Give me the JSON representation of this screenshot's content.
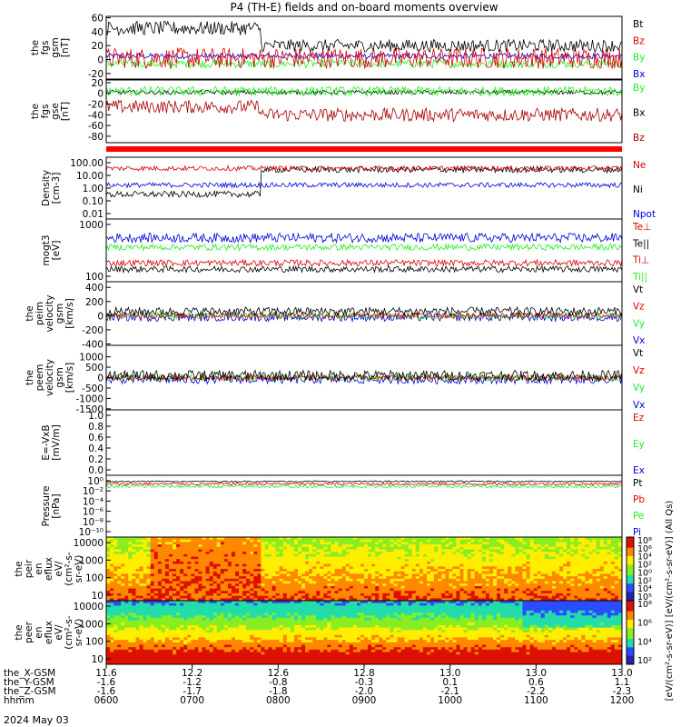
{
  "title": "P4 (TH-E) fields and on-board moments overview",
  "date_label": "2024 May 03",
  "colors": {
    "black": "#000000",
    "red": "#dd0000",
    "darkred": "#aa0000",
    "green": "#22ee22",
    "blue": "#0000dd",
    "frame": "#000000"
  },
  "chart_data": [
    {
      "type": "line",
      "id": "fgs_gsm",
      "ylabel": [
        "the",
        "fgs",
        "gsm",
        "[nT]"
      ],
      "yticks": [
        -20,
        0,
        20,
        40,
        60
      ],
      "ylim": [
        -28,
        62
      ],
      "legend": [
        {
          "label": "Bt",
          "color": "black"
        },
        {
          "label": "Bz",
          "color": "red"
        },
        {
          "label": "By",
          "color": "green"
        },
        {
          "label": "Bx",
          "color": "blue"
        }
      ]
    },
    {
      "type": "line",
      "id": "fgs_gse",
      "ylabel": [
        "the",
        "fgs",
        "gse",
        "[nT]"
      ],
      "yticks": [
        -80,
        -60,
        -40,
        -20,
        0,
        20
      ],
      "ylim": [
        -92,
        25
      ],
      "legend": [
        {
          "label": "By",
          "color": "green"
        },
        {
          "label": "Bx",
          "color": "black"
        },
        {
          "label": "Bz",
          "color": "darkred"
        }
      ]
    },
    {
      "type": "line",
      "id": "density",
      "scale": "log",
      "ylabel": [
        "Density",
        "[cm-3]"
      ],
      "yticks": [
        "100.00",
        "10.00",
        "1.00",
        "0.10",
        "0.01"
      ],
      "legend": [
        {
          "label": "Ne",
          "color": "red"
        },
        {
          "label": "Ni",
          "color": "black"
        },
        {
          "label": "Npot",
          "color": "blue"
        }
      ]
    },
    {
      "type": "line",
      "id": "temperature",
      "scale": "log",
      "ylabel": [
        "mogt3",
        "[eV]"
      ],
      "yticks": [
        "1000",
        "100"
      ],
      "legend": [
        {
          "label": "Te⊥",
          "color": "red"
        },
        {
          "label": "Te||",
          "color": "black"
        },
        {
          "label": "Ti⊥",
          "color": "red"
        },
        {
          "label": "Ti||",
          "color": "green"
        }
      ]
    },
    {
      "type": "line",
      "id": "peim_velocity",
      "ylabel": [
        "the",
        "peim",
        "velocity",
        "gsm",
        "[km/s]"
      ],
      "yticks": [
        -400,
        -200,
        0,
        200,
        400
      ],
      "ylim": [
        -420,
        480
      ],
      "legend": [
        {
          "label": "Vt",
          "color": "black"
        },
        {
          "label": "Vz",
          "color": "red"
        },
        {
          "label": "Vy",
          "color": "green"
        },
        {
          "label": "Vx",
          "color": "blue"
        }
      ]
    },
    {
      "type": "line",
      "id": "peem_velocity",
      "ylabel": [
        "the",
        "peem",
        "velocity",
        "gsm",
        "[km/s]"
      ],
      "yticks": [
        -1500,
        -1000,
        -500,
        0,
        500,
        1000
      ],
      "ylim": [
        -1550,
        1550
      ],
      "legend": [
        {
          "label": "Vt",
          "color": "black"
        },
        {
          "label": "Vz",
          "color": "red"
        },
        {
          "label": "Vy",
          "color": "green"
        },
        {
          "label": "Vx",
          "color": "blue"
        }
      ]
    },
    {
      "type": "line",
      "id": "efield",
      "ylabel": [
        "E=-VxB",
        "[mV/m]"
      ],
      "yticks": [
        "1.0",
        "0.8",
        "0.6",
        "0.4",
        "0.2",
        "0.0"
      ],
      "legend": [
        {
          "label": "Ez",
          "color": "red"
        },
        {
          "label": "Ey",
          "color": "green"
        },
        {
          "label": "Ex",
          "color": "blue"
        }
      ]
    },
    {
      "type": "line",
      "id": "pressure",
      "scale": "log",
      "ylabel": [
        "Pressure",
        "[nPa]"
      ],
      "yticks": [
        "10⁰",
        "10⁻²",
        "10⁻⁴",
        "10⁻⁶",
        "10⁻⁸",
        "10⁻¹⁰"
      ],
      "legend": [
        {
          "label": "Pt",
          "color": "black"
        },
        {
          "label": "Pb",
          "color": "red"
        },
        {
          "label": "Pe",
          "color": "green"
        },
        {
          "label": "Pi",
          "color": "blue"
        }
      ]
    },
    {
      "type": "heatmap",
      "id": "peir_eflux",
      "ylabel": [
        "the",
        "peir",
        "en",
        "eflux",
        "eV/",
        "(cm²-s-",
        "sr-eV)"
      ],
      "yticks": [
        "10000",
        "1000",
        "100",
        "10"
      ],
      "colorbar_ticks": [
        "10⁸",
        "10⁶",
        "10⁴",
        "10²",
        "10⁰",
        "10²",
        "10⁴",
        "10⁵"
      ]
    },
    {
      "type": "heatmap",
      "id": "peer_eflux",
      "ylabel": [
        "the",
        "peer",
        "en",
        "eflux",
        "eV/",
        "(cm²-s-",
        "sr-eV)"
      ],
      "yticks": [
        "10000",
        "1000",
        "100",
        "10"
      ],
      "colorbar_ticks": [
        "10⁸",
        "10⁶",
        "10⁴",
        "10²"
      ]
    }
  ],
  "colorbar_label": "[eV/(cm²-s-sr-eV)] [eV/(cm²-s-sr-eV)] (All Qs)",
  "xaxis": {
    "row_labels": [
      "the_X-GSM",
      "the_Y-GSM",
      "the_Z-GSM",
      "hhmm"
    ],
    "columns": [
      [
        "11.6",
        "-1.6",
        "-1.6",
        "0600"
      ],
      [
        "12.2",
        "-1.2",
        "-1.7",
        "0700"
      ],
      [
        "12.6",
        "-0.8",
        "-1.8",
        "0800"
      ],
      [
        "12.8",
        "-0.3",
        "-2.0",
        "0900"
      ],
      [
        "13.0",
        "0.1",
        "-2.1",
        "1000"
      ],
      [
        "13.0",
        "0.6",
        "-2.2",
        "1100"
      ],
      [
        "13.0",
        "1.1",
        "-2.3",
        "1200"
      ]
    ]
  }
}
